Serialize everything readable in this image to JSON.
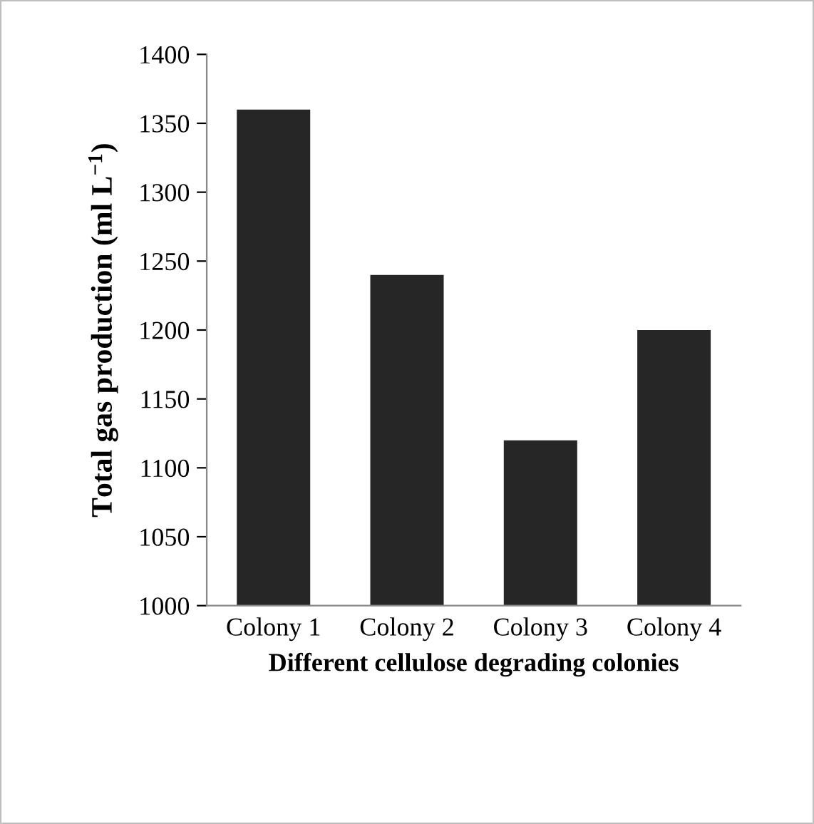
{
  "chart_data": {
    "type": "bar",
    "xlabel": "Different cellulose degrading colonies",
    "ylabel": "Total gas production (ml L$^{−1}$)",
    "categories": [
      "Colony 1",
      "Colony 2",
      "Colony 3",
      "Colony 4"
    ],
    "values": [
      1360,
      1240,
      1120,
      1200
    ],
    "color": "#262626",
    "ylim": [
      1000,
      1400
    ],
    "yticks": [
      1000,
      1050,
      1100,
      1150,
      1200,
      1250,
      1300,
      1350,
      1400
    ],
    "grid": false,
    "legend": false
  }
}
